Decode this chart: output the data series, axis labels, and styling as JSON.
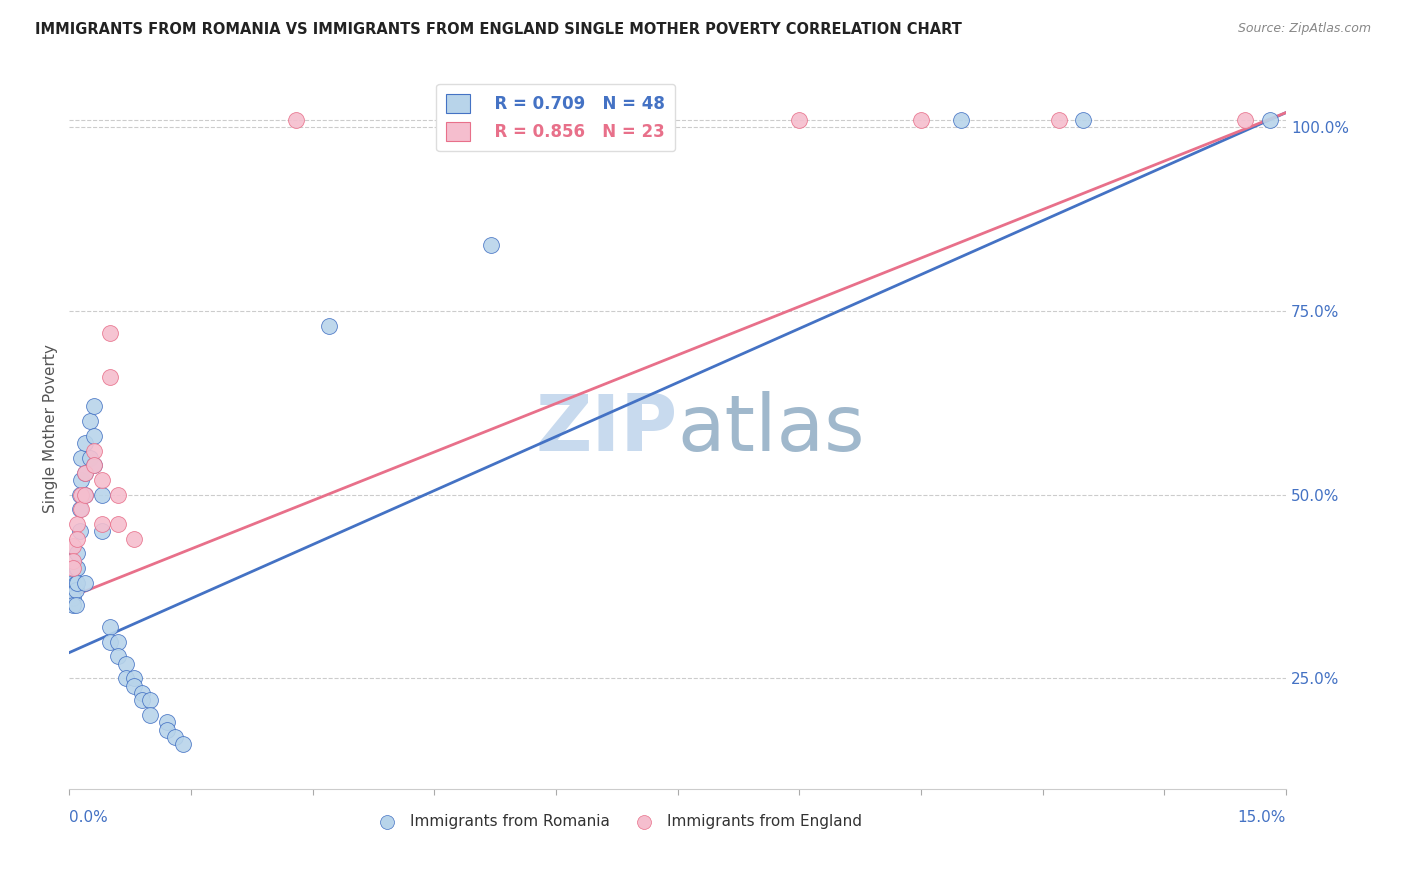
{
  "title": "IMMIGRANTS FROM ROMANIA VS IMMIGRANTS FROM ENGLAND SINGLE MOTHER POVERTY CORRELATION CHART",
  "source": "Source: ZipAtlas.com",
  "ylabel": "Single Mother Poverty",
  "ylabel_right_ticks": [
    "25.0%",
    "50.0%",
    "75.0%",
    "100.0%"
  ],
  "ylabel_right_values": [
    0.25,
    0.5,
    0.75,
    1.0
  ],
  "xlim": [
    0.0,
    0.15
  ],
  "ylim": [
    0.1,
    1.08
  ],
  "romania_R": 0.709,
  "romania_N": 48,
  "england_R": 0.856,
  "england_N": 23,
  "romania_color": "#b8d4ea",
  "england_color": "#f5bece",
  "romania_line_color": "#4472c4",
  "england_line_color": "#e8708a",
  "title_color": "#222222",
  "source_color": "#888888",
  "watermark_color": "#dce8f5",
  "axis_label_color": "#4472c4",
  "romania_trendline": [
    0.0,
    0.285,
    0.15,
    1.02
  ],
  "england_trendline": [
    0.0,
    0.36,
    0.15,
    1.02
  ],
  "romania_scatter": [
    [
      0.0005,
      0.38
    ],
    [
      0.0005,
      0.37
    ],
    [
      0.0005,
      0.36
    ],
    [
      0.0005,
      0.35
    ],
    [
      0.0008,
      0.4
    ],
    [
      0.0008,
      0.38
    ],
    [
      0.0008,
      0.37
    ],
    [
      0.0008,
      0.35
    ],
    [
      0.001,
      0.42
    ],
    [
      0.001,
      0.4
    ],
    [
      0.001,
      0.38
    ],
    [
      0.0013,
      0.5
    ],
    [
      0.0013,
      0.48
    ],
    [
      0.0013,
      0.45
    ],
    [
      0.0015,
      0.55
    ],
    [
      0.0015,
      0.52
    ],
    [
      0.002,
      0.57
    ],
    [
      0.002,
      0.53
    ],
    [
      0.002,
      0.5
    ],
    [
      0.002,
      0.38
    ],
    [
      0.0025,
      0.6
    ],
    [
      0.0025,
      0.55
    ],
    [
      0.003,
      0.62
    ],
    [
      0.003,
      0.58
    ],
    [
      0.003,
      0.54
    ],
    [
      0.004,
      0.5
    ],
    [
      0.004,
      0.45
    ],
    [
      0.005,
      0.32
    ],
    [
      0.005,
      0.3
    ],
    [
      0.006,
      0.3
    ],
    [
      0.006,
      0.28
    ],
    [
      0.007,
      0.27
    ],
    [
      0.007,
      0.25
    ],
    [
      0.008,
      0.25
    ],
    [
      0.008,
      0.24
    ],
    [
      0.009,
      0.23
    ],
    [
      0.009,
      0.22
    ],
    [
      0.01,
      0.22
    ],
    [
      0.01,
      0.2
    ],
    [
      0.012,
      0.19
    ],
    [
      0.012,
      0.18
    ],
    [
      0.013,
      0.17
    ],
    [
      0.014,
      0.16
    ],
    [
      0.032,
      0.73
    ],
    [
      0.052,
      0.84
    ],
    [
      0.11,
      1.01
    ],
    [
      0.125,
      1.01
    ],
    [
      0.148,
      1.01
    ]
  ],
  "england_scatter": [
    [
      0.0005,
      0.43
    ],
    [
      0.0005,
      0.41
    ],
    [
      0.0005,
      0.4
    ],
    [
      0.001,
      0.46
    ],
    [
      0.001,
      0.44
    ],
    [
      0.0015,
      0.5
    ],
    [
      0.0015,
      0.48
    ],
    [
      0.002,
      0.53
    ],
    [
      0.002,
      0.5
    ],
    [
      0.003,
      0.56
    ],
    [
      0.003,
      0.54
    ],
    [
      0.004,
      0.52
    ],
    [
      0.004,
      0.46
    ],
    [
      0.005,
      0.66
    ],
    [
      0.005,
      0.72
    ],
    [
      0.006,
      0.5
    ],
    [
      0.006,
      0.46
    ],
    [
      0.008,
      0.44
    ],
    [
      0.028,
      1.01
    ],
    [
      0.09,
      1.01
    ],
    [
      0.105,
      1.01
    ],
    [
      0.122,
      1.01
    ],
    [
      0.145,
      1.01
    ]
  ]
}
